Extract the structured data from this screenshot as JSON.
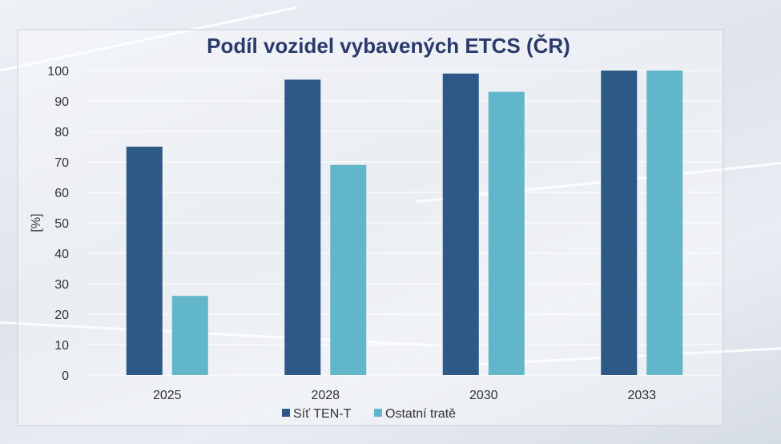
{
  "chart_data": {
    "type": "bar",
    "title": "Podíl vozidel vybavených ETCS (ČR)",
    "xlabel": "",
    "ylabel": "[%]",
    "ylim": [
      0,
      100
    ],
    "yticks": [
      0,
      10,
      20,
      30,
      40,
      50,
      60,
      70,
      80,
      90,
      100
    ],
    "categories": [
      "2025",
      "2028",
      "2030",
      "2033"
    ],
    "series": [
      {
        "name": "Síť TEN-T",
        "color": "#2c5985",
        "values": [
          75,
          97,
          99,
          100
        ]
      },
      {
        "name": "Ostatní tratě",
        "color": "#62b6c9",
        "values": [
          26,
          69,
          93,
          100
        ]
      }
    ],
    "grid": true,
    "legend": "bottom"
  }
}
